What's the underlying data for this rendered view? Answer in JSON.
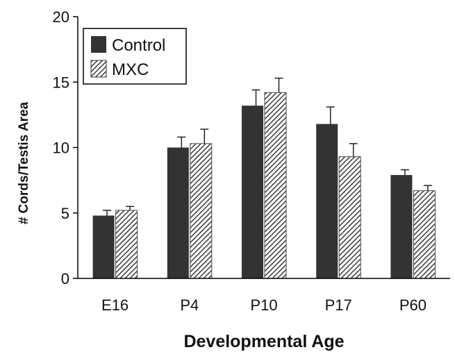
{
  "chart_data": {
    "type": "bar",
    "title": "",
    "xlabel": "Developmental Age",
    "ylabel": "# Cords/Testis Area",
    "categories": [
      "E16",
      "P4",
      "P10",
      "P17",
      "P60"
    ],
    "ylim": [
      0,
      20
    ],
    "yticks": [
      "0",
      "5",
      "10",
      "15",
      "20"
    ],
    "grid": false,
    "legend_position": "top-left",
    "series": [
      {
        "name": "Control",
        "values": [
          4.8,
          10.0,
          13.2,
          11.8,
          7.9
        ],
        "errors": [
          0.4,
          0.8,
          1.2,
          1.3,
          0.4
        ],
        "color": "#333333",
        "pattern": "solid"
      },
      {
        "name": "MXC",
        "values": [
          5.2,
          10.3,
          14.2,
          9.3,
          6.7
        ],
        "errors": [
          0.3,
          1.1,
          1.1,
          1.0,
          0.4
        ],
        "color": "#555555",
        "pattern": "diagonal-hatch"
      }
    ]
  }
}
